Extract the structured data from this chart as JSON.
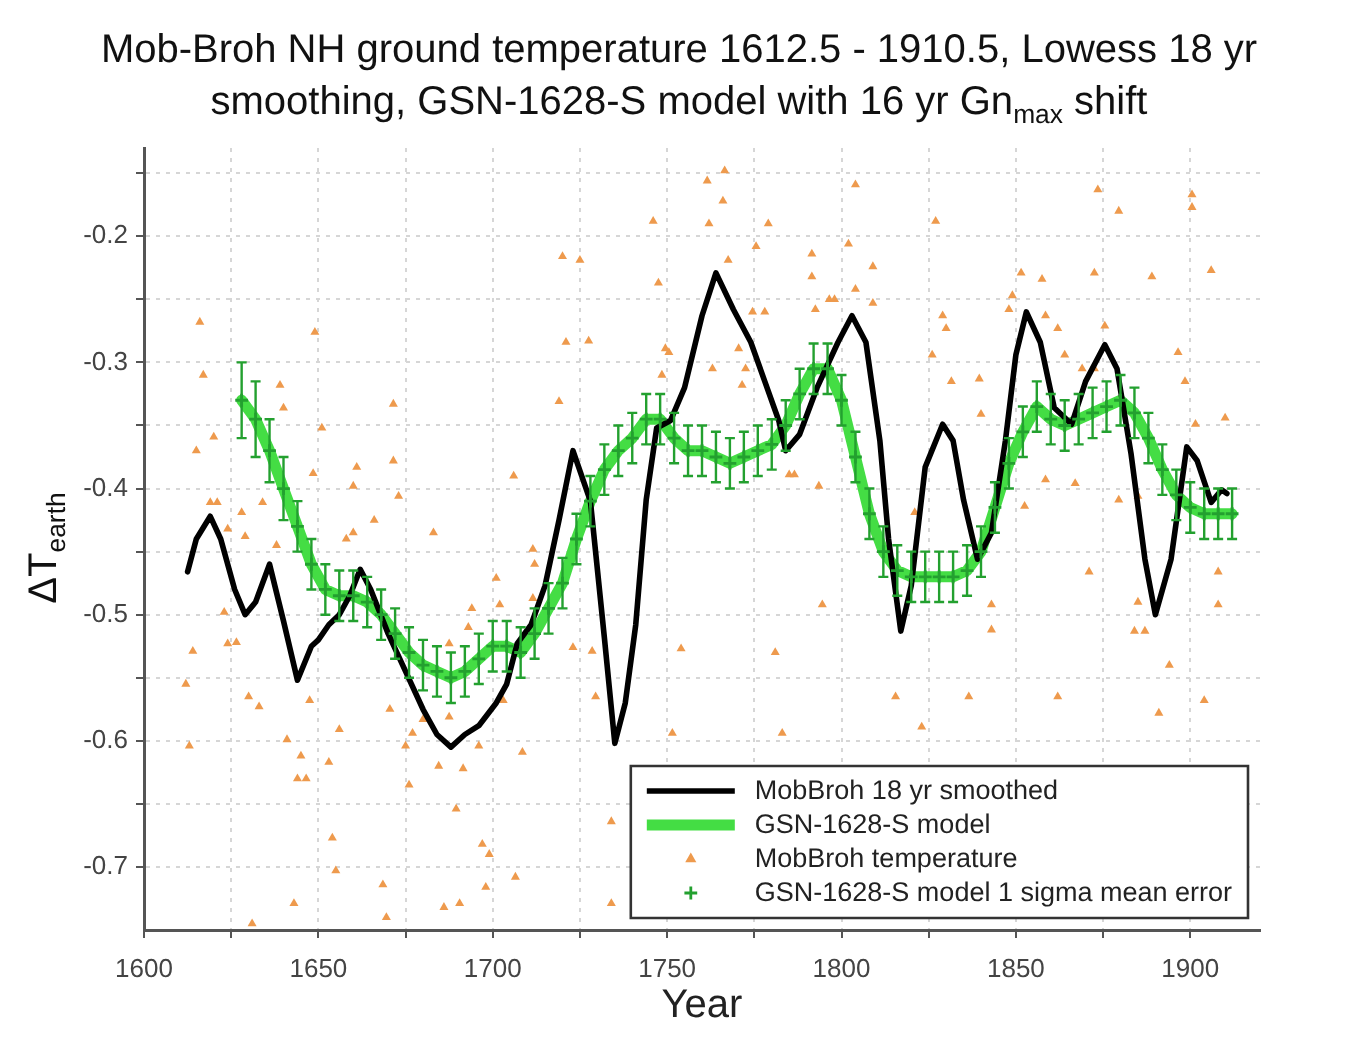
{
  "chart_data": {
    "type": "line",
    "title": "Mob-Broh NH ground temperature 1612.5 - 1910.5, Lowess 18 yr smoothing, GSN-1628-S model with 16 yr Gn$_{max}$ shift",
    "xlabel": "Year",
    "ylabel": "ΔT$_{earth}$",
    "xlim": [
      1600,
      1920
    ],
    "xticks": [
      1600,
      {
        "value": 1625,
        "label": null
      },
      1650,
      {
        "value": 1675,
        "label": null
      },
      1700,
      {
        "value": 1725,
        "label": null
      },
      1750,
      {
        "value": 1775,
        "label": null
      },
      1800,
      {
        "value": 1825,
        "label": null
      },
      1850,
      {
        "value": 1875,
        "label": null
      },
      1900
    ],
    "ylim": [
      -0.75,
      -0.13
    ],
    "yticks": [
      -0.7,
      {
        "value": -0.65,
        "label": null
      },
      -0.6,
      {
        "value": -0.55,
        "label": null
      },
      -0.5,
      {
        "value": -0.45,
        "label": null
      },
      -0.4,
      {
        "value": -0.35,
        "label": null
      },
      -0.3,
      {
        "value": -0.25,
        "label": null
      },
      -0.2,
      {
        "value": -0.15,
        "label": null
      }
    ],
    "grid": true,
    "legend": "bottom right",
    "series": [
      {
        "name": "MobBroh 18 yr smoothed",
        "color": "#000000",
        "marker": "none",
        "x": [
          1612.5,
          1615,
          1619,
          1622,
          1626,
          1629,
          1632,
          1636,
          1640,
          1644,
          1648,
          1650,
          1653,
          1656,
          1659,
          1662,
          1665,
          1670,
          1675,
          1680,
          1684,
          1688,
          1692,
          1696,
          1701,
          1704,
          1707,
          1711,
          1715,
          1719,
          1723,
          1728,
          1732,
          1735,
          1738,
          1741,
          1744,
          1747,
          1751,
          1755,
          1760,
          1764,
          1769,
          1774,
          1778,
          1782,
          1784,
          1788,
          1793,
          1799,
          1803,
          1807,
          1811,
          1813.5,
          1817,
          1820,
          1824,
          1829,
          1832,
          1835,
          1839,
          1843,
          1847,
          1850,
          1853,
          1857,
          1861,
          1866,
          1870,
          1875.5,
          1879,
          1883,
          1887,
          1890,
          1894.5,
          1899,
          1902,
          1906,
          1909,
          1910.5
        ],
        "values": [
          -0.466,
          -0.44,
          -0.422,
          -0.44,
          -0.48,
          -0.5,
          -0.49,
          -0.46,
          -0.505,
          -0.552,
          -0.525,
          -0.52,
          -0.508,
          -0.5,
          -0.485,
          -0.464,
          -0.48,
          -0.515,
          -0.545,
          -0.575,
          -0.595,
          -0.605,
          -0.595,
          -0.588,
          -0.57,
          -0.555,
          -0.523,
          -0.508,
          -0.477,
          -0.425,
          -0.37,
          -0.41,
          -0.518,
          -0.602,
          -0.57,
          -0.508,
          -0.409,
          -0.352,
          -0.346,
          -0.32,
          -0.263,
          -0.229,
          -0.258,
          -0.284,
          -0.315,
          -0.346,
          -0.37,
          -0.357,
          -0.32,
          -0.284,
          -0.263,
          -0.284,
          -0.362,
          -0.44,
          -0.513,
          -0.477,
          -0.383,
          -0.349,
          -0.362,
          -0.409,
          -0.456,
          -0.435,
          -0.362,
          -0.294,
          -0.26,
          -0.284,
          -0.336,
          -0.349,
          -0.315,
          -0.286,
          -0.305,
          -0.372,
          -0.456,
          -0.5,
          -0.456,
          -0.367,
          -0.378,
          -0.411,
          -0.401,
          -0.404
        ]
      },
      {
        "name": "GSN-1628-S model",
        "color": "#44dd44",
        "marker": "none",
        "x": [
          1628,
          1632,
          1636,
          1640,
          1644,
          1648,
          1652,
          1656,
          1660,
          1664,
          1668,
          1672,
          1676,
          1680,
          1684,
          1688,
          1692,
          1696,
          1700,
          1704,
          1708,
          1712,
          1716,
          1720,
          1724,
          1728,
          1732,
          1736,
          1740,
          1744,
          1748,
          1752,
          1756,
          1760,
          1764,
          1768,
          1772,
          1776,
          1780,
          1784,
          1788,
          1792,
          1796,
          1800,
          1804,
          1808,
          1812,
          1816,
          1820,
          1824,
          1828,
          1832,
          1836,
          1840,
          1844,
          1848,
          1852,
          1856,
          1860,
          1864,
          1868,
          1872,
          1876,
          1880,
          1884,
          1888,
          1892,
          1896,
          1900,
          1904,
          1908,
          1912
        ],
        "values": [
          -0.33,
          -0.345,
          -0.37,
          -0.4,
          -0.43,
          -0.46,
          -0.48,
          -0.485,
          -0.485,
          -0.49,
          -0.5,
          -0.515,
          -0.53,
          -0.54,
          -0.545,
          -0.55,
          -0.545,
          -0.535,
          -0.525,
          -0.525,
          -0.53,
          -0.515,
          -0.495,
          -0.475,
          -0.44,
          -0.41,
          -0.385,
          -0.37,
          -0.36,
          -0.345,
          -0.345,
          -0.36,
          -0.37,
          -0.37,
          -0.375,
          -0.38,
          -0.375,
          -0.37,
          -0.365,
          -0.35,
          -0.325,
          -0.305,
          -0.305,
          -0.33,
          -0.375,
          -0.42,
          -0.45,
          -0.465,
          -0.47,
          -0.47,
          -0.47,
          -0.47,
          -0.465,
          -0.45,
          -0.415,
          -0.38,
          -0.355,
          -0.335,
          -0.345,
          -0.35,
          -0.345,
          -0.34,
          -0.335,
          -0.33,
          -0.34,
          -0.36,
          -0.385,
          -0.405,
          -0.415,
          -0.42,
          -0.42,
          -0.42
        ]
      },
      {
        "name": "MobBroh temperature",
        "type": "scatter",
        "color": "#ee9a4d",
        "marker": "triangle",
        "x": [
          1612,
          1613,
          1614,
          1615,
          1616,
          1617,
          1619,
          1620,
          1621,
          1623,
          1624,
          1624,
          1626.5,
          1628,
          1629,
          1630,
          1631,
          1633,
          1634,
          1638,
          1639,
          1640,
          1641,
          1643,
          1644,
          1645,
          1646.5,
          1647.5,
          1648.5,
          1649,
          1651,
          1653,
          1654,
          1655,
          1656,
          1658,
          1660,
          1660,
          1661,
          1666,
          1668.5,
          1669.5,
          1670.5,
          1671.5,
          1671.5,
          1673,
          1675,
          1676,
          1677,
          1680,
          1683,
          1684.5,
          1686,
          1687.5,
          1687.5,
          1689.5,
          1690.5,
          1691.5,
          1693,
          1694,
          1696,
          1697,
          1698,
          1699,
          1701,
          1702,
          1703,
          1706,
          1706.5,
          1708.5,
          1711.5,
          1711.5,
          1712,
          1719,
          1720,
          1721,
          1723,
          1725,
          1727.5,
          1728.5,
          1729.5,
          1734,
          1734,
          1746,
          1747.5,
          1748.5,
          1749.5,
          1750.5,
          1751.5,
          1754,
          1761.5,
          1762,
          1763,
          1766,
          1766.5,
          1767.5,
          1770.5,
          1771.5,
          1772.5,
          1774.5,
          1775.5,
          1778,
          1779,
          1781,
          1783,
          1785,
          1786.5,
          1791.5,
          1791.5,
          1792.5,
          1793.5,
          1794.5,
          1796.5,
          1798,
          1802,
          1804,
          1804,
          1809,
          1809,
          1815.5,
          1821,
          1823,
          1826,
          1827,
          1829,
          1830,
          1831.5,
          1836.5,
          1839.5,
          1840,
          1843,
          1843,
          1848,
          1849,
          1851.5,
          1852.5,
          1857.5,
          1858.5,
          1858.5,
          1862,
          1862,
          1864,
          1867,
          1869,
          1871,
          1872.5,
          1872.5,
          1873.5,
          1875.5,
          1879.5,
          1879.5,
          1884,
          1885,
          1885,
          1887,
          1889,
          1891,
          1894,
          1896.5,
          1898.5,
          1900.5,
          1900.5,
          1901.5,
          1904,
          1906,
          1908,
          1908,
          1910
        ],
        "values": [
          -0.555,
          -0.604,
          -0.529,
          -0.37,
          -0.268,
          -0.31,
          -0.411,
          -0.359,
          -0.411,
          -0.498,
          -0.432,
          -0.523,
          -0.522,
          -0.419,
          -0.438,
          -0.565,
          -0.745,
          -0.573,
          -0.411,
          -0.445,
          -0.318,
          -0.336,
          -0.599,
          -0.729,
          -0.63,
          -0.612,
          -0.63,
          -0.568,
          -0.388,
          -0.276,
          -0.352,
          -0.617,
          -0.677,
          -0.703,
          -0.591,
          -0.44,
          -0.398,
          -0.435,
          -0.383,
          -0.425,
          -0.714,
          -0.74,
          -0.575,
          -0.333,
          -0.378,
          -0.406,
          -0.604,
          -0.635,
          -0.594,
          -0.583,
          -0.435,
          -0.62,
          -0.732,
          -0.581,
          -0.523,
          -0.654,
          -0.729,
          -0.622,
          -0.51,
          -0.495,
          -0.604,
          -0.682,
          -0.716,
          -0.69,
          -0.471,
          -0.492,
          -0.568,
          -0.39,
          -0.708,
          -0.609,
          -0.448,
          -0.487,
          -0.46,
          -0.331,
          -0.216,
          -0.284,
          -0.526,
          -0.219,
          -0.283,
          -0.529,
          -0.565,
          -0.664,
          -0.729,
          -0.188,
          -0.237,
          -0.31,
          -0.289,
          -0.292,
          -0.594,
          -0.527,
          -0.156,
          -0.19,
          -0.305,
          -0.172,
          -0.148,
          -0.219,
          -0.289,
          -0.318,
          -0.305,
          -0.26,
          -0.208,
          -0.26,
          -0.19,
          -0.53,
          -0.594,
          -0.389,
          -0.389,
          -0.214,
          -0.232,
          -0.258,
          -0.398,
          -0.492,
          -0.25,
          -0.25,
          -0.206,
          -0.159,
          -0.242,
          -0.224,
          -0.253,
          -0.565,
          -0.419,
          -0.589,
          -0.294,
          -0.188,
          -0.263,
          -0.273,
          -0.315,
          -0.565,
          -0.313,
          -0.341,
          -0.492,
          -0.512,
          -0.258,
          -0.247,
          -0.229,
          -0.414,
          -0.234,
          -0.263,
          -0.393,
          -0.273,
          -0.565,
          -0.294,
          -0.396,
          -0.305,
          -0.466,
          -0.229,
          -0.305,
          -0.163,
          -0.271,
          -0.18,
          -0.409,
          -0.513,
          -0.406,
          -0.49,
          -0.513,
          -0.232,
          -0.578,
          -0.54,
          -0.292,
          -0.315,
          -0.167,
          -0.177,
          -0.349,
          -0.568,
          -0.227,
          -0.466,
          -0.492,
          -0.344
        ]
      },
      {
        "name": "GSN-1628-S model 1 sigma mean error",
        "type": "scatter",
        "color": "#23a02f",
        "marker": "cross",
        "x": [
          1628,
          1632,
          1636,
          1640,
          1644,
          1648,
          1652,
          1656,
          1660,
          1664,
          1668,
          1672,
          1676,
          1680,
          1684,
          1688,
          1692,
          1696,
          1700,
          1704,
          1708,
          1712,
          1716,
          1720,
          1724,
          1728,
          1732,
          1736,
          1740,
          1744,
          1748,
          1752,
          1756,
          1760,
          1764,
          1768,
          1772,
          1776,
          1780,
          1784,
          1788,
          1792,
          1796,
          1800,
          1804,
          1808,
          1812,
          1816,
          1820,
          1824,
          1828,
          1832,
          1836,
          1840,
          1844,
          1848,
          1852,
          1856,
          1860,
          1864,
          1868,
          1872,
          1876,
          1880,
          1884,
          1888,
          1892,
          1896,
          1900,
          1904,
          1908,
          1912
        ],
        "values": [
          -0.33,
          -0.345,
          -0.37,
          -0.4,
          -0.43,
          -0.46,
          -0.48,
          -0.485,
          -0.485,
          -0.49,
          -0.5,
          -0.515,
          -0.53,
          -0.54,
          -0.545,
          -0.55,
          -0.545,
          -0.535,
          -0.525,
          -0.525,
          -0.53,
          -0.515,
          -0.495,
          -0.475,
          -0.44,
          -0.41,
          -0.385,
          -0.37,
          -0.36,
          -0.345,
          -0.345,
          -0.36,
          -0.37,
          -0.37,
          -0.375,
          -0.38,
          -0.375,
          -0.37,
          -0.365,
          -0.35,
          -0.325,
          -0.305,
          -0.305,
          -0.33,
          -0.375,
          -0.42,
          -0.45,
          -0.465,
          -0.47,
          -0.47,
          -0.47,
          -0.47,
          -0.465,
          -0.45,
          -0.415,
          -0.38,
          -0.355,
          -0.335,
          -0.345,
          -0.35,
          -0.345,
          -0.34,
          -0.335,
          -0.33,
          -0.34,
          -0.36,
          -0.385,
          -0.405,
          -0.415,
          -0.42,
          -0.42,
          -0.42
        ],
        "errors": [
          0.03,
          0.03,
          0.025,
          0.025,
          0.02,
          0.02,
          0.02,
          0.02,
          0.02,
          0.02,
          0.02,
          0.02,
          0.02,
          0.02,
          0.02,
          0.02,
          0.02,
          0.02,
          0.02,
          0.02,
          0.02,
          0.02,
          0.02,
          0.02,
          0.02,
          0.02,
          0.02,
          0.02,
          0.02,
          0.02,
          0.02,
          0.02,
          0.02,
          0.02,
          0.02,
          0.02,
          0.02,
          0.02,
          0.02,
          0.02,
          0.02,
          0.02,
          0.02,
          0.02,
          0.02,
          0.02,
          0.02,
          0.02,
          0.02,
          0.02,
          0.02,
          0.02,
          0.02,
          0.02,
          0.02,
          0.02,
          0.02,
          0.02,
          0.02,
          0.02,
          0.02,
          0.02,
          0.02,
          0.02,
          0.02,
          0.02,
          0.02,
          0.02,
          0.02,
          0.02,
          0.02,
          0.02
        ]
      }
    ]
  }
}
